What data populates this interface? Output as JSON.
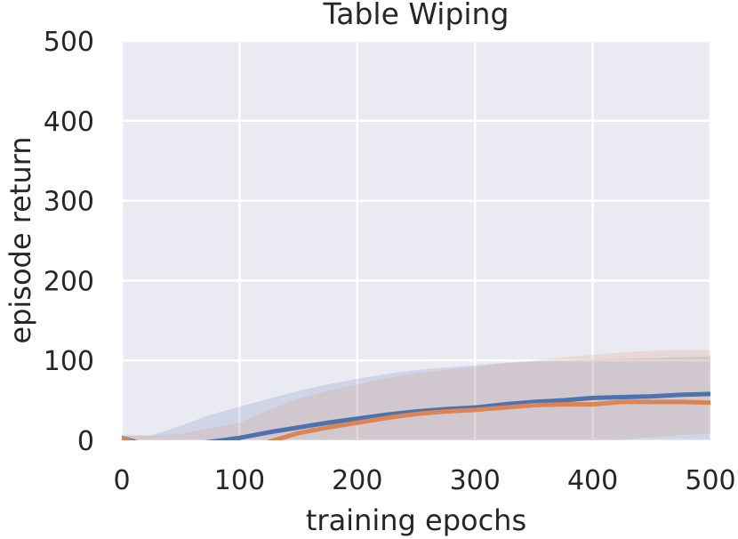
{
  "chart_data": {
    "type": "line",
    "title": "Table Wiping",
    "xlabel": "training epochs",
    "ylabel": "episode return",
    "xlim": [
      0,
      500
    ],
    "ylim": [
      0,
      500
    ],
    "xticks": [
      "0",
      "100",
      "200",
      "300",
      "400",
      "500"
    ],
    "yticks": [
      "0",
      "100",
      "200",
      "300",
      "400",
      "500"
    ],
    "grid": true,
    "legend": "none",
    "background": "#eaeaf2",
    "series": [
      {
        "color": "#4c72b0",
        "x": [
          0,
          25,
          50,
          75,
          100,
          125,
          150,
          175,
          200,
          225,
          250,
          275,
          300,
          325,
          350,
          375,
          400,
          425,
          450,
          475,
          500
        ],
        "mean": [
          3,
          -8,
          -6,
          -2,
          3,
          10,
          16,
          22,
          27,
          32,
          36,
          39,
          41,
          45,
          48,
          50,
          53,
          54,
          55,
          57,
          58
        ],
        "lower": [
          0,
          -40,
          -55,
          -55,
          -55,
          -55,
          -55,
          -55,
          -55,
          -55,
          -55,
          -55,
          -55,
          -55,
          -55,
          -55,
          -55,
          -55,
          -55,
          -55,
          -55
        ],
        "upper": [
          6,
          6,
          18,
          32,
          42,
          52,
          62,
          70,
          77,
          83,
          88,
          91,
          94,
          97,
          99,
          100,
          101,
          102,
          103,
          104,
          105
        ]
      },
      {
        "color": "#dd8452",
        "x": [
          0,
          25,
          50,
          75,
          100,
          125,
          150,
          175,
          200,
          225,
          250,
          275,
          300,
          325,
          350,
          375,
          400,
          425,
          450,
          475,
          500
        ],
        "mean": [
          3,
          -12,
          -15,
          -12,
          -8,
          -2,
          9,
          16,
          22,
          28,
          33,
          36,
          38,
          41,
          44,
          45,
          45,
          48,
          48,
          48,
          47
        ],
        "lower": [
          0,
          -60,
          -60,
          -60,
          -60,
          -60,
          -60,
          -60,
          -60,
          -60,
          -60,
          -55,
          -50,
          -40,
          -30,
          -20,
          -10,
          0,
          4,
          7,
          8
        ],
        "upper": [
          6,
          6,
          8,
          15,
          22,
          38,
          52,
          62,
          70,
          78,
          84,
          88,
          92,
          96,
          100,
          104,
          107,
          110,
          112,
          113,
          113
        ]
      }
    ]
  }
}
